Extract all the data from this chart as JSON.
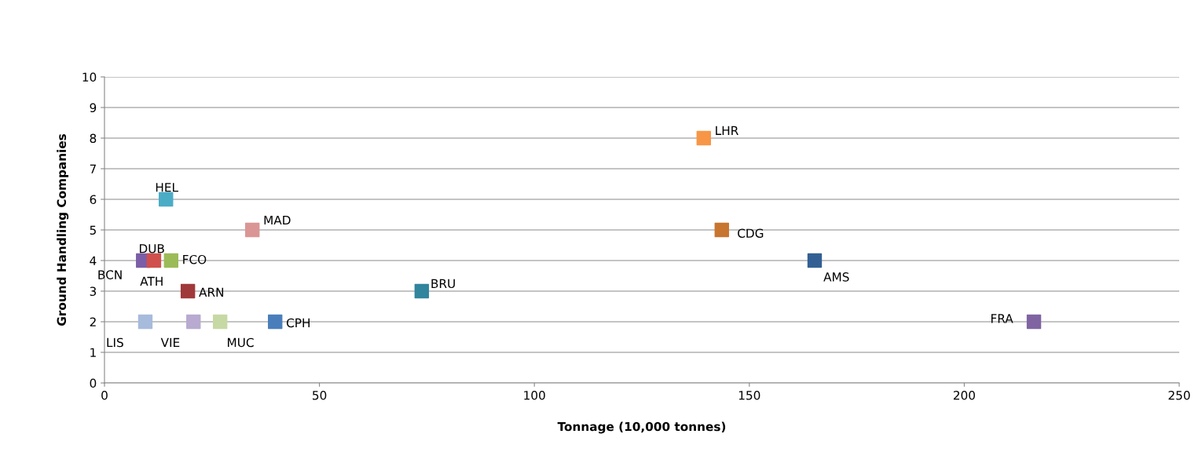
{
  "chart_data": {
    "type": "scatter",
    "xlabel": "Tonnage (10,000 tonnes)",
    "ylabel": "Ground Handling Companies",
    "x": [
      9.0,
      10.8,
      11.5,
      15.5,
      14.3,
      34.4,
      19.4,
      9.5,
      20.7,
      26.9,
      39.7,
      73.8,
      139.4,
      143.6,
      165.2,
      216.2
    ],
    "values": [
      4,
      null,
      4,
      4,
      6,
      5,
      3,
      2,
      2,
      2,
      2,
      3,
      8,
      5,
      4,
      2
    ],
    "colors": [
      "#7b5ea7",
      "#c0504d",
      "#d0504d",
      "#9bbb59",
      "#4bacc6",
      "#d99694",
      "#a0393a",
      "#a7bbdc",
      "#b8aad0",
      "#c6d9a5",
      "#4a7ebb",
      "#31859c",
      "#f79646",
      "#c8752f",
      "#336094",
      "#8064a2"
    ],
    "annotations": [
      {
        "text": "BCN",
        "x": 9.0,
        "y": 4
      },
      {
        "text": "ATH",
        "x": 10.8,
        "y": 4
      },
      {
        "text": "DUB",
        "x": 11.5,
        "y": 4
      },
      {
        "text": "FCO",
        "x": 15.5,
        "y": 4
      },
      {
        "text": "HEL",
        "x": 14.3,
        "y": 6
      },
      {
        "text": "MAD",
        "x": 34.4,
        "y": 5
      },
      {
        "text": "ARN",
        "x": 19.4,
        "y": 3
      },
      {
        "text": "LIS",
        "x": 9.5,
        "y": 2
      },
      {
        "text": "VIE",
        "x": 20.7,
        "y": 2
      },
      {
        "text": "MUC",
        "x": 26.9,
        "y": 2
      },
      {
        "text": "CPH",
        "x": 39.7,
        "y": 2
      },
      {
        "text": "BRU",
        "x": 73.8,
        "y": 3
      },
      {
        "text": "LHR",
        "x": 139.4,
        "y": 8
      },
      {
        "text": "CDG",
        "x": 143.6,
        "y": 5
      },
      {
        "text": "AMS",
        "x": 165.2,
        "y": 4
      },
      {
        "text": "FRA",
        "x": 216.2,
        "y": 2
      }
    ],
    "xlim": [
      0,
      250
    ],
    "xticks": [
      0,
      50,
      100,
      150,
      200,
      250
    ],
    "ylim": [
      0,
      10
    ],
    "yticks": [
      0,
      1,
      2,
      3,
      4,
      5,
      6,
      7,
      8,
      9,
      10
    ],
    "grid": "y",
    "marker": "square",
    "legend": false
  }
}
